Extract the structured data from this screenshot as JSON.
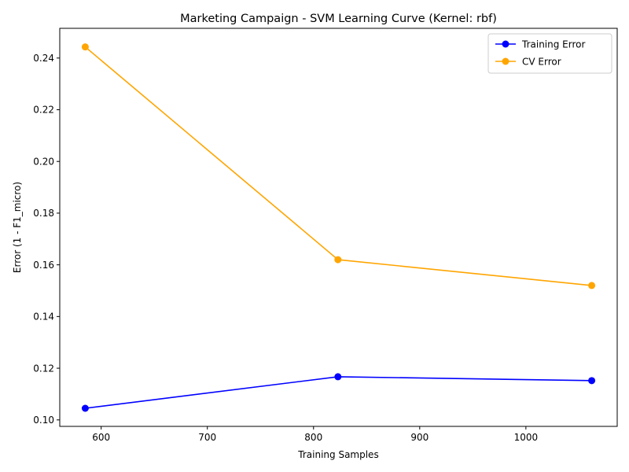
{
  "chart_data": {
    "type": "line",
    "title": "Marketing Campaign - SVM Learning Curve (Kernel: rbf)",
    "xlabel": "Training Samples",
    "ylabel": "Error (1 - F1_micro)",
    "x": [
      585,
      823,
      1062
    ],
    "xlim": [
      561,
      1086
    ],
    "ylim": [
      0.0975,
      0.2515
    ],
    "xticks": [
      600,
      700,
      800,
      900,
      1000
    ],
    "yticks": [
      0.1,
      0.12,
      0.14,
      0.16,
      0.18,
      0.2,
      0.22,
      0.24
    ],
    "xtick_labels": [
      "600",
      "700",
      "800",
      "900",
      "1000"
    ],
    "ytick_labels": [
      "0.10",
      "0.12",
      "0.14",
      "0.16",
      "0.18",
      "0.20",
      "0.22",
      "0.24"
    ],
    "grid": false,
    "legend": "top-right",
    "series": [
      {
        "name": "Training Error",
        "color": "#0000ff",
        "marker": "circle",
        "values": [
          0.1045,
          0.1167,
          0.1152
        ]
      },
      {
        "name": "CV Error",
        "color": "#ffa500",
        "marker": "circle",
        "values": [
          0.2443,
          0.162,
          0.152
        ]
      }
    ]
  }
}
